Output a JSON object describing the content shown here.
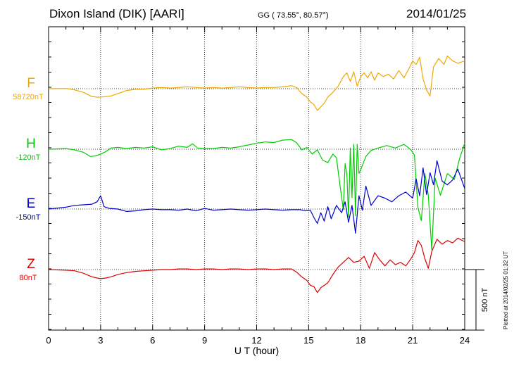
{
  "header": {
    "station": "Dixon Island (DIK)  [AARI]",
    "coords": "GG ( 73.55°,  80.57°)",
    "date": "2014/01/25"
  },
  "plot_note": "Plotted at 2014/02/25 01:32 UT",
  "chart_data": {
    "type": "line",
    "xlabel": "U T (hour)",
    "xlim": [
      0,
      24
    ],
    "xticks": [
      0,
      3,
      6,
      9,
      12,
      15,
      18,
      21,
      24
    ],
    "scale_label": "500 nT",
    "scale_nT": 500,
    "series": [
      {
        "name": "F",
        "baseline_label": "58720nT",
        "color": "#f0a800",
        "x": [
          0,
          1,
          1.5,
          2,
          2.5,
          2.8,
          3,
          3.3,
          3.6,
          4,
          4.5,
          5,
          5.5,
          6,
          6.5,
          7,
          7.5,
          8,
          8.5,
          9,
          9.5,
          10,
          10.5,
          11,
          11.5,
          12,
          12.5,
          13,
          13.5,
          14,
          14.3,
          14.6,
          14.9,
          15.1,
          15.3,
          15.5,
          15.7,
          15.9,
          16.1,
          16.4,
          16.7,
          17,
          17.2,
          17.4,
          17.6,
          17.8,
          18,
          18.2,
          18.4,
          18.6,
          18.8,
          19,
          19.3,
          19.6,
          19.9,
          20.2,
          20.5,
          20.8,
          21,
          21.2,
          21.4,
          21.6,
          21.8,
          22,
          22.2,
          22.5,
          22.8,
          23,
          23.3,
          23.6,
          24
        ],
        "y": [
          0,
          2,
          -10,
          -30,
          -65,
          -70,
          -70,
          -65,
          -60,
          -40,
          -15,
          -5,
          -5,
          5,
          10,
          5,
          10,
          15,
          10,
          5,
          10,
          5,
          10,
          15,
          10,
          5,
          10,
          10,
          15,
          25,
          10,
          -40,
          -70,
          -110,
          -130,
          -180,
          -150,
          -120,
          -70,
          -30,
          20,
          100,
          130,
          60,
          140,
          20,
          100,
          130,
          90,
          140,
          70,
          130,
          100,
          120,
          80,
          150,
          90,
          170,
          230,
          200,
          260,
          80,
          -10,
          -60,
          180,
          250,
          200,
          270,
          230,
          210,
          230
        ]
      },
      {
        "name": "H",
        "baseline_label": "-120nT",
        "color": "#00cc00",
        "x": [
          0,
          1,
          1.5,
          2,
          2.4,
          2.7,
          3,
          3.3,
          3.6,
          4,
          4.5,
          5,
          5.5,
          6,
          6.5,
          7,
          7.5,
          8,
          8.3,
          8.6,
          9,
          9.5,
          10,
          10.5,
          11,
          11.5,
          12,
          12.5,
          13,
          13.5,
          14,
          14.3,
          14.6,
          14.9,
          15.2,
          15.5,
          15.8,
          16.1,
          16.4,
          16.6,
          16.8,
          17,
          17.1,
          17.2,
          17.3,
          17.4,
          17.5,
          17.6,
          17.7,
          17.8,
          17.9,
          18,
          18.3,
          18.6,
          19,
          19.5,
          20,
          20.5,
          20.9,
          21.1,
          21.3,
          21.5,
          21.7,
          21.9,
          22.1,
          22.3,
          22.6,
          23,
          23.4,
          23.7,
          24
        ],
        "y": [
          0,
          5,
          -5,
          -25,
          -60,
          -55,
          -40,
          -20,
          10,
          15,
          5,
          15,
          10,
          20,
          -5,
          5,
          25,
          15,
          45,
          10,
          5,
          5,
          15,
          10,
          20,
          35,
          50,
          60,
          55,
          75,
          80,
          55,
          -5,
          15,
          -40,
          -5,
          -90,
          -110,
          -40,
          -70,
          -290,
          -500,
          -120,
          -200,
          -560,
          10,
          -400,
          40,
          -550,
          40,
          -200,
          -170,
          -60,
          -10,
          10,
          30,
          10,
          40,
          -5,
          -50,
          -480,
          -590,
          -200,
          -380,
          -830,
          -240,
          -380,
          -200,
          -250,
          -80,
          50
        ]
      },
      {
        "name": "E",
        "baseline_label": "-150nT",
        "color": "#0000cc",
        "x": [
          0,
          1,
          1.5,
          2,
          2.5,
          2.8,
          3,
          3.2,
          3.5,
          4,
          4.5,
          5,
          5.5,
          6,
          6.5,
          7,
          7.5,
          8,
          8.5,
          9,
          9.5,
          10,
          10.5,
          11,
          11.5,
          12,
          12.5,
          13,
          13.5,
          14,
          14.5,
          14.8,
          15.1,
          15.3,
          15.5,
          15.7,
          15.9,
          16.1,
          16.3,
          16.6,
          16.9,
          17.1,
          17.3,
          17.5,
          17.7,
          17.9,
          18.1,
          18.3,
          18.6,
          19,
          19.4,
          19.8,
          20.2,
          20.6,
          21,
          21.2,
          21.4,
          21.6,
          21.8,
          22,
          22.2,
          22.4,
          22.7,
          23,
          23.3,
          23.6,
          24
        ],
        "y": [
          0,
          15,
          30,
          35,
          40,
          60,
          110,
          20,
          5,
          0,
          -20,
          -15,
          -5,
          0,
          -5,
          -5,
          -10,
          0,
          -15,
          5,
          -10,
          -5,
          0,
          -5,
          -10,
          -5,
          0,
          -5,
          -10,
          -5,
          -5,
          -15,
          -10,
          -70,
          -120,
          -30,
          -100,
          20,
          -80,
          30,
          -30,
          60,
          -110,
          30,
          -200,
          110,
          -10,
          190,
          30,
          110,
          90,
          60,
          110,
          140,
          90,
          250,
          110,
          340,
          120,
          300,
          200,
          400,
          230,
          200,
          240,
          330,
          170
        ]
      },
      {
        "name": "Z",
        "baseline_label": "80nT",
        "color": "#dd0000",
        "x": [
          0,
          1,
          1.5,
          2,
          2.5,
          2.8,
          3,
          3.3,
          3.6,
          4,
          4.5,
          5,
          5.5,
          6,
          6.5,
          7,
          7.5,
          8,
          8.5,
          9,
          9.5,
          10,
          10.5,
          11,
          11.5,
          12,
          12.5,
          13,
          13.5,
          14,
          14.3,
          14.6,
          14.9,
          15.1,
          15.3,
          15.5,
          15.7,
          15.9,
          16.1,
          16.4,
          16.7,
          17,
          17.3,
          17.6,
          17.9,
          18.2,
          18.5,
          18.8,
          19.1,
          19.4,
          19.7,
          20,
          20.3,
          20.6,
          20.9,
          21.1,
          21.3,
          21.5,
          21.7,
          21.9,
          22.1,
          22.4,
          22.7,
          23,
          23.3,
          23.6,
          24
        ],
        "y": [
          0,
          -5,
          -10,
          -30,
          -60,
          -70,
          -75,
          -70,
          -60,
          -40,
          -25,
          -15,
          -10,
          -5,
          0,
          0,
          5,
          5,
          0,
          5,
          5,
          0,
          5,
          5,
          0,
          5,
          5,
          0,
          5,
          5,
          -20,
          -60,
          -90,
          -130,
          -140,
          -190,
          -150,
          -130,
          -110,
          -40,
          20,
          60,
          100,
          60,
          70,
          110,
          10,
          140,
          80,
          30,
          80,
          40,
          60,
          30,
          90,
          140,
          240,
          200,
          90,
          10,
          150,
          250,
          210,
          240,
          220,
          260,
          230
        ]
      }
    ]
  }
}
